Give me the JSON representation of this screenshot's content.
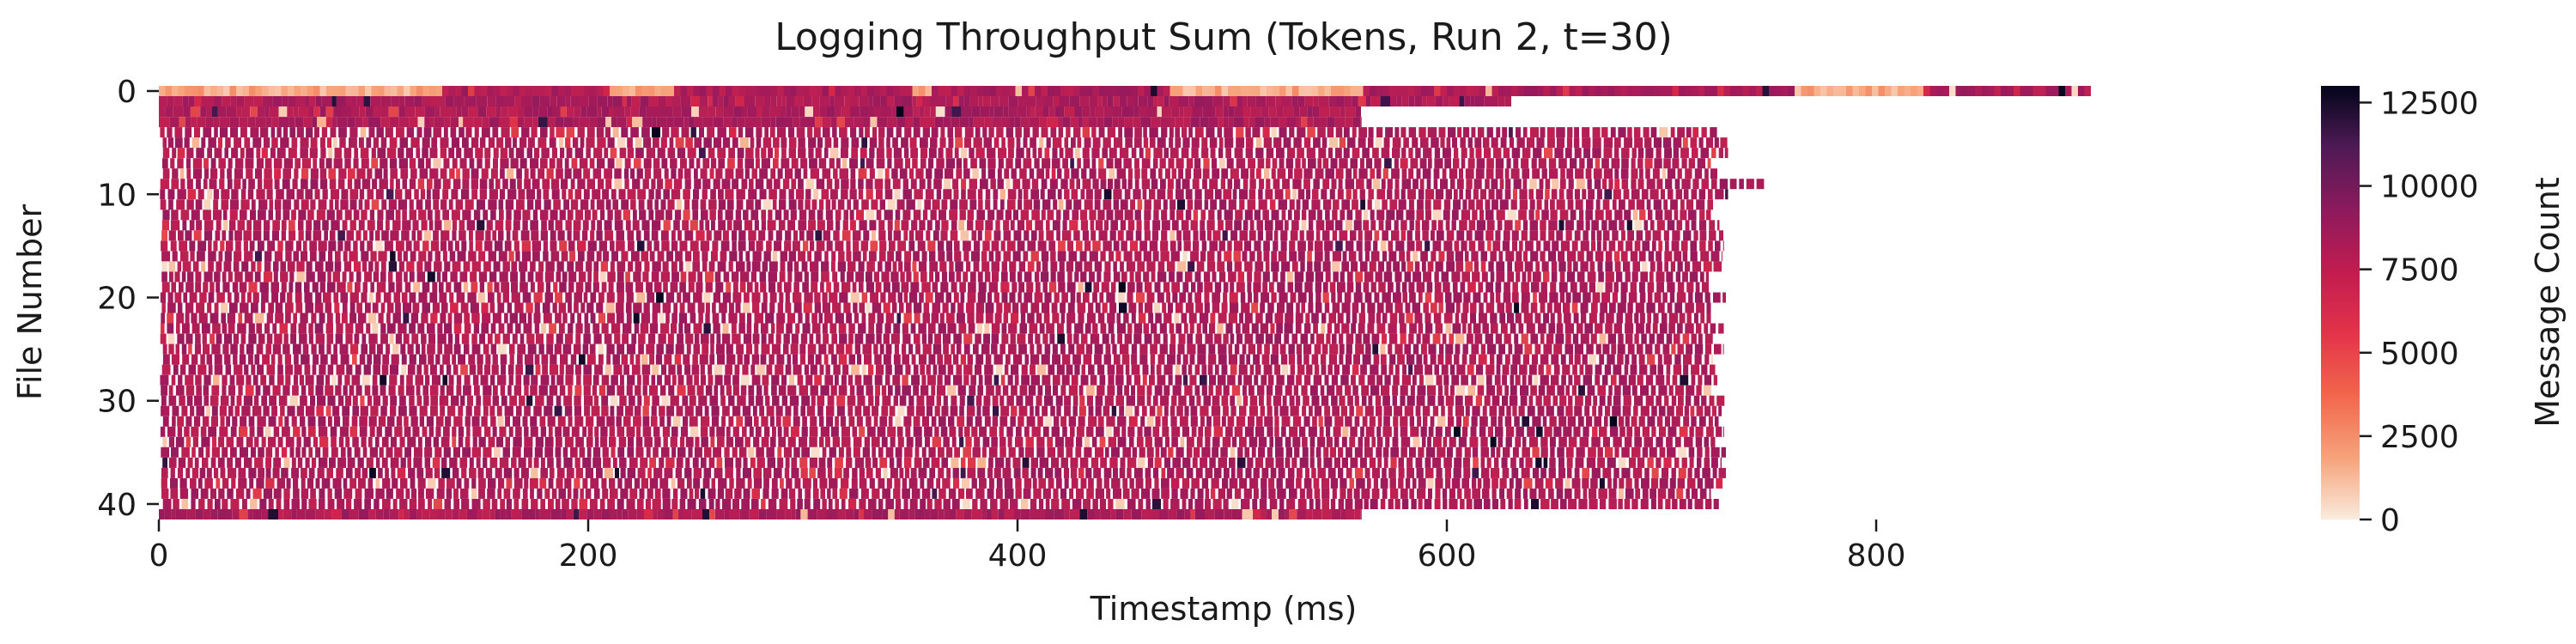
{
  "chart_data": {
    "type": "heatmap",
    "title": "Logging Throughput Sum (Tokens, Run 2, t=30)",
    "xlabel": "Timestamp (ms)",
    "ylabel": "File Number",
    "colorbar_label": "Message Count",
    "x_ticks": [
      0,
      200,
      400,
      600,
      800
    ],
    "y_ticks": [
      0,
      10,
      20,
      30,
      40
    ],
    "colorbar_ticks": [
      0,
      2500,
      5000,
      7500,
      10000,
      12500
    ],
    "xlim": [
      0,
      900
    ],
    "ylim_rows": [
      0,
      41
    ],
    "n_files": 42,
    "value_range": [
      0,
      13000
    ],
    "typical_value": 7000,
    "colormap": "rocket_r",
    "colormap_stops": [
      "#faebdd",
      "#f6a47c",
      "#f1654b",
      "#d5254a",
      "#a11a5b",
      "#6a1d62",
      "#3b1549",
      "#03051a"
    ],
    "rows_summary": [
      {
        "files": "0",
        "active_ms": [
          0,
          900
        ],
        "note": "sparse pale segments with dense red bands near 130-210, 240-350, 360-470, 560-760 and 820-900"
      },
      {
        "files": "1",
        "active_ms": [
          0,
          630
        ],
        "note": "mostly dense"
      },
      {
        "files": "2-3",
        "active_ms": [
          0,
          560
        ],
        "note": "dense"
      },
      {
        "files": "4-40",
        "active_ms": [
          0,
          730
        ],
        "note": "banded heavy traffic, mean about 7000"
      },
      {
        "files": "9",
        "active_ms": [
          0,
          748
        ],
        "note": "extends to about 748 ms"
      },
      {
        "files": "41",
        "active_ms": [
          0,
          560
        ],
        "note": "dense"
      }
    ]
  }
}
